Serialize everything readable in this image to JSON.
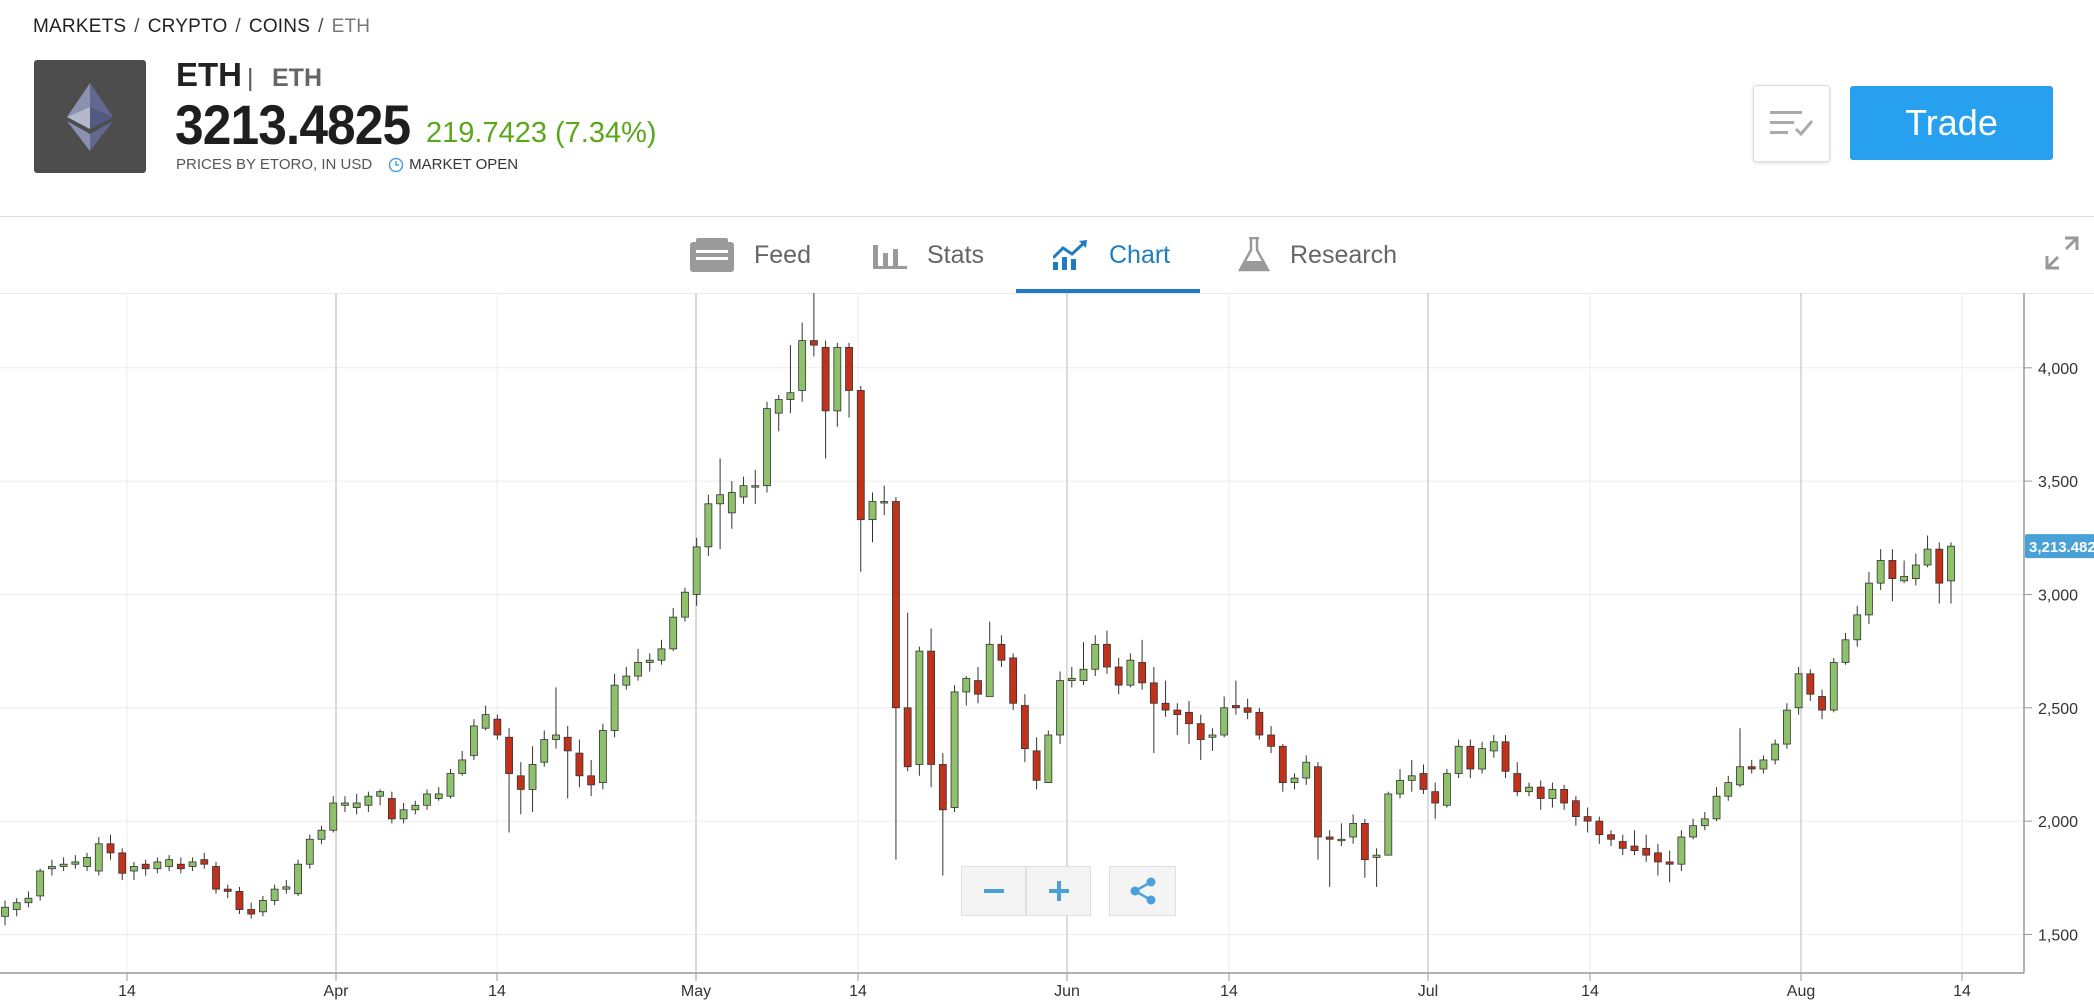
{
  "breadcrumb": {
    "items": [
      "MARKETS",
      "CRYPTO",
      "COINS",
      "ETH"
    ],
    "separator": "/"
  },
  "header": {
    "symbol": "ETH",
    "name": "ETH",
    "price": "3213.4825",
    "change": "219.7423 (7.34%)",
    "price_source": "PRICES BY ETORO, IN USD",
    "market_status": "MARKET OPEN",
    "trade_label": "Trade",
    "logo_icon": "ethereum-icon",
    "change_color": "#5ba71c",
    "trade_color": "#27a0f0"
  },
  "tabs": [
    {
      "label": "Feed",
      "icon": "feed-icon"
    },
    {
      "label": "Stats",
      "icon": "stats-icon"
    },
    {
      "label": "Chart",
      "icon": "chart-icon",
      "active": true
    },
    {
      "label": "Research",
      "icon": "flask-icon"
    }
  ],
  "chart_data": {
    "type": "candlestick",
    "y_ticks": [
      "4,000",
      "3,500",
      "3,000",
      "2,500",
      "2,000",
      "1,500"
    ],
    "x_ticks": [
      "14",
      "Apr",
      "14",
      "May",
      "14",
      "Jun",
      "14",
      "Jul",
      "14",
      "Aug",
      "14"
    ],
    "last_price_label": "3,213.482",
    "ylim": [
      1330,
      4330
    ],
    "up_color": "#8dc26b",
    "down_color": "#c0321c",
    "accent": "#4aa1d8",
    "candles": [
      [
        1580,
        1620,
        1650,
        1540
      ],
      [
        1610,
        1640,
        1660,
        1580
      ],
      [
        1640,
        1660,
        1690,
        1620
      ],
      [
        1670,
        1780,
        1790,
        1650
      ],
      [
        1790,
        1800,
        1830,
        1760
      ],
      [
        1800,
        1810,
        1840,
        1780
      ],
      [
        1810,
        1820,
        1850,
        1790
      ],
      [
        1800,
        1840,
        1860,
        1780
      ],
      [
        1780,
        1900,
        1930,
        1760
      ],
      [
        1900,
        1860,
        1940,
        1830
      ],
      [
        1860,
        1770,
        1880,
        1740
      ],
      [
        1780,
        1800,
        1820,
        1740
      ],
      [
        1810,
        1790,
        1830,
        1760
      ],
      [
        1790,
        1820,
        1840,
        1770
      ],
      [
        1800,
        1830,
        1850,
        1780
      ],
      [
        1810,
        1790,
        1840,
        1770
      ],
      [
        1800,
        1820,
        1840,
        1780
      ],
      [
        1830,
        1810,
        1860,
        1790
      ],
      [
        1800,
        1700,
        1820,
        1680
      ],
      [
        1700,
        1690,
        1720,
        1660
      ],
      [
        1690,
        1610,
        1710,
        1590
      ],
      [
        1610,
        1590,
        1640,
        1570
      ],
      [
        1600,
        1650,
        1670,
        1580
      ],
      [
        1650,
        1700,
        1720,
        1630
      ],
      [
        1700,
        1710,
        1740,
        1680
      ],
      [
        1680,
        1810,
        1830,
        1670
      ],
      [
        1810,
        1920,
        1940,
        1790
      ],
      [
        1920,
        1960,
        1980,
        1900
      ],
      [
        1960,
        2080,
        2110,
        1950
      ],
      [
        2070,
        2080,
        2110,
        2040
      ],
      [
        2060,
        2080,
        2120,
        2030
      ],
      [
        2070,
        2110,
        2130,
        2040
      ],
      [
        2110,
        2130,
        2140,
        2070
      ],
      [
        2100,
        2010,
        2130,
        1990
      ],
      [
        2010,
        2050,
        2080,
        1990
      ],
      [
        2050,
        2070,
        2090,
        2030
      ],
      [
        2070,
        2120,
        2140,
        2050
      ],
      [
        2100,
        2120,
        2150,
        2090
      ],
      [
        2110,
        2210,
        2230,
        2100
      ],
      [
        2210,
        2270,
        2310,
        2200
      ],
      [
        2290,
        2420,
        2450,
        2270
      ],
      [
        2410,
        2470,
        2510,
        2400
      ],
      [
        2450,
        2380,
        2470,
        2360
      ],
      [
        2370,
        2210,
        2410,
        1950
      ],
      [
        2200,
        2140,
        2260,
        2030
      ],
      [
        2140,
        2250,
        2330,
        2040
      ],
      [
        2260,
        2360,
        2400,
        2240
      ],
      [
        2360,
        2380,
        2590,
        2320
      ],
      [
        2370,
        2310,
        2420,
        2100
      ],
      [
        2300,
        2200,
        2360,
        2150
      ],
      [
        2200,
        2160,
        2270,
        2110
      ],
      [
        2170,
        2400,
        2430,
        2140
      ],
      [
        2400,
        2600,
        2650,
        2370
      ],
      [
        2600,
        2640,
        2680,
        2580
      ],
      [
        2640,
        2700,
        2760,
        2620
      ],
      [
        2700,
        2710,
        2740,
        2660
      ],
      [
        2710,
        2760,
        2800,
        2690
      ],
      [
        2760,
        2900,
        2940,
        2750
      ],
      [
        2900,
        3010,
        3030,
        2880
      ],
      [
        3000,
        3210,
        3250,
        2950
      ],
      [
        3210,
        3400,
        3440,
        3170
      ],
      [
        3400,
        3440,
        3600,
        3200
      ],
      [
        3360,
        3450,
        3500,
        3290
      ],
      [
        3430,
        3480,
        3520,
        3400
      ],
      [
        3480,
        3480,
        3550,
        3400
      ],
      [
        3480,
        3820,
        3850,
        3450
      ],
      [
        3800,
        3860,
        3880,
        3720
      ],
      [
        3860,
        3890,
        4100,
        3800
      ],
      [
        3900,
        4120,
        4200,
        3850
      ],
      [
        4120,
        4100,
        4330,
        4050
      ],
      [
        4090,
        3810,
        4120,
        3600
      ],
      [
        3810,
        4090,
        4110,
        3740
      ],
      [
        4090,
        3900,
        4110,
        3780
      ],
      [
        3900,
        3330,
        3920,
        3100
      ],
      [
        3330,
        3410,
        3450,
        3230
      ],
      [
        3410,
        3410,
        3480,
        3350
      ],
      [
        3410,
        2500,
        3430,
        1830
      ],
      [
        2500,
        2240,
        2920,
        2220
      ],
      [
        2250,
        2750,
        2770,
        2200
      ],
      [
        2750,
        2250,
        2850,
        2150
      ],
      [
        2250,
        2050,
        2300,
        1760
      ],
      [
        2060,
        2570,
        2600,
        2040
      ],
      [
        2570,
        2630,
        2640,
        2510
      ],
      [
        2620,
        2560,
        2680,
        2520
      ],
      [
        2550,
        2780,
        2880,
        2550
      ],
      [
        2780,
        2710,
        2820,
        2680
      ],
      [
        2720,
        2520,
        2740,
        2490
      ],
      [
        2510,
        2320,
        2560,
        2260
      ],
      [
        2310,
        2180,
        2370,
        2140
      ],
      [
        2170,
        2380,
        2400,
        2170
      ],
      [
        2380,
        2620,
        2660,
        2340
      ],
      [
        2620,
        2630,
        2680,
        2590
      ],
      [
        2620,
        2670,
        2790,
        2600
      ],
      [
        2670,
        2780,
        2820,
        2640
      ],
      [
        2780,
        2680,
        2840,
        2650
      ],
      [
        2680,
        2600,
        2720,
        2560
      ],
      [
        2600,
        2710,
        2740,
        2590
      ],
      [
        2700,
        2610,
        2800,
        2580
      ],
      [
        2610,
        2520,
        2680,
        2300
      ],
      [
        2520,
        2490,
        2620,
        2460
      ],
      [
        2490,
        2470,
        2520,
        2380
      ],
      [
        2480,
        2430,
        2530,
        2340
      ],
      [
        2430,
        2360,
        2470,
        2270
      ],
      [
        2370,
        2380,
        2410,
        2310
      ],
      [
        2380,
        2500,
        2550,
        2370
      ],
      [
        2510,
        2500,
        2620,
        2470
      ],
      [
        2500,
        2480,
        2540,
        2450
      ],
      [
        2480,
        2380,
        2500,
        2360
      ],
      [
        2380,
        2330,
        2420,
        2300
      ],
      [
        2330,
        2170,
        2340,
        2130
      ],
      [
        2170,
        2190,
        2210,
        2140
      ],
      [
        2190,
        2260,
        2290,
        2160
      ],
      [
        2240,
        1930,
        2260,
        1830
      ],
      [
        1930,
        1920,
        1960,
        1710
      ],
      [
        1920,
        1920,
        1990,
        1890
      ],
      [
        1930,
        1990,
        2030,
        1900
      ],
      [
        1990,
        1830,
        2010,
        1750
      ],
      [
        1840,
        1850,
        1880,
        1710
      ],
      [
        1850,
        2120,
        2130,
        1850
      ],
      [
        2120,
        2180,
        2230,
        2100
      ],
      [
        2180,
        2200,
        2270,
        2130
      ],
      [
        2210,
        2140,
        2250,
        2120
      ],
      [
        2130,
        2080,
        2170,
        2010
      ],
      [
        2070,
        2210,
        2230,
        2060
      ],
      [
        2210,
        2330,
        2360,
        2190
      ],
      [
        2330,
        2230,
        2360,
        2190
      ],
      [
        2230,
        2320,
        2350,
        2210
      ],
      [
        2310,
        2350,
        2380,
        2280
      ],
      [
        2350,
        2220,
        2380,
        2190
      ],
      [
        2210,
        2130,
        2260,
        2110
      ],
      [
        2130,
        2150,
        2170,
        2110
      ],
      [
        2150,
        2100,
        2180,
        2050
      ],
      [
        2100,
        2140,
        2170,
        2060
      ],
      [
        2140,
        2080,
        2160,
        2050
      ],
      [
        2090,
        2020,
        2110,
        1980
      ],
      [
        2020,
        2000,
        2060,
        1950
      ],
      [
        2000,
        1940,
        2020,
        1900
      ],
      [
        1940,
        1920,
        1960,
        1890
      ],
      [
        1910,
        1880,
        1940,
        1850
      ],
      [
        1890,
        1870,
        1960,
        1850
      ],
      [
        1880,
        1850,
        1940,
        1820
      ],
      [
        1860,
        1820,
        1900,
        1760
      ],
      [
        1820,
        1810,
        1870,
        1730
      ],
      [
        1810,
        1930,
        1960,
        1780
      ],
      [
        1930,
        1980,
        2010,
        1920
      ],
      [
        1980,
        2010,
        2040,
        1960
      ],
      [
        2010,
        2110,
        2150,
        2000
      ],
      [
        2110,
        2170,
        2200,
        2090
      ],
      [
        2160,
        2240,
        2410,
        2150
      ],
      [
        2240,
        2230,
        2270,
        2210
      ],
      [
        2230,
        2270,
        2290,
        2210
      ],
      [
        2270,
        2340,
        2360,
        2250
      ],
      [
        2340,
        2490,
        2520,
        2320
      ],
      [
        2500,
        2650,
        2680,
        2470
      ],
      [
        2650,
        2560,
        2670,
        2530
      ],
      [
        2550,
        2490,
        2580,
        2450
      ],
      [
        2490,
        2700,
        2720,
        2480
      ],
      [
        2700,
        2800,
        2830,
        2690
      ],
      [
        2800,
        2910,
        2950,
        2770
      ],
      [
        2910,
        3050,
        3100,
        2870
      ],
      [
        3050,
        3150,
        3200,
        3020
      ],
      [
        3150,
        3070,
        3200,
        2970
      ],
      [
        3060,
        3080,
        3150,
        3050
      ],
      [
        3070,
        3130,
        3180,
        3040
      ],
      [
        3130,
        3200,
        3260,
        3120
      ],
      [
        3200,
        3050,
        3230,
        2960
      ],
      [
        3060,
        3213,
        3230,
        2960
      ]
    ]
  }
}
